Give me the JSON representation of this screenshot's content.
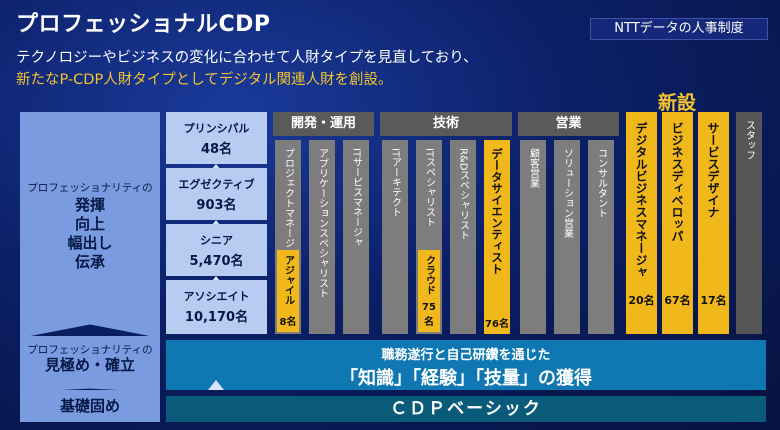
{
  "header": {
    "title": "プロフェッショナルCDP",
    "badge": "NTTデータの人事制度",
    "subtitle_line1": "テクノロジーやビジネスの変化に合わせて人財タイプを見直しており、",
    "subtitle_line2": "新たなP-CDP人財タイプとしてデジタル関連人財を創設。"
  },
  "left_column": {
    "top_small": "プロフェッショナリティの",
    "top_words": [
      "発揮",
      "向上",
      "幅出し",
      "伝承"
    ],
    "mid_small": "プロフェッショナリティの",
    "mid_big": "見極め・確立",
    "bottom_big": "基礎固め"
  },
  "levels": [
    {
      "name": "プリンシパル",
      "count": "48名"
    },
    {
      "name": "エグゼクティブ",
      "count": "903名"
    },
    {
      "name": "シニア",
      "count": "5,470名"
    },
    {
      "name": "アソシエイト",
      "count": "10,170名"
    }
  ],
  "groups": {
    "dev": "開発・運用",
    "tech": "技術",
    "sales": "営業"
  },
  "columns": {
    "pm": "プロジェクトマネージャ",
    "pm_sub": "アジャイル",
    "pm_sub_count": "8名",
    "app": "アプリケーションスペシャリスト",
    "itsm": "ITサービスマネージャ",
    "ita": "ITアーキテクト",
    "its": "ITスペシャリスト",
    "its_sub": "クラウド",
    "its_sub_count": "75名",
    "rd": "R&Dスペシャリスト",
    "ds": "データサイエンティスト",
    "ds_count": "76名",
    "client": "顧客営業",
    "solution": "ソリューション営業",
    "consultant": "コンサルタント"
  },
  "new_section": {
    "label": "新設",
    "items": [
      {
        "name": "デジタルビジネスマネージャ",
        "count": "20名"
      },
      {
        "name": "ビジネスディベロッパ",
        "count": "67名"
      },
      {
        "name": "サービスデザイナ",
        "count": "17名"
      }
    ]
  },
  "staff": "スタッフ",
  "bottom": {
    "main_line1": "職務遂行と自己研鑽を通じた",
    "main_line2": "「知識」「経験」「技量」の獲得",
    "cdp": "ＣＤＰベーシック"
  },
  "colors": {
    "gold": "#f0b81a",
    "level_fill": "#b8ccf2",
    "pyramid_fill": "#7a9be0",
    "main_bar": "#0f78b3"
  }
}
